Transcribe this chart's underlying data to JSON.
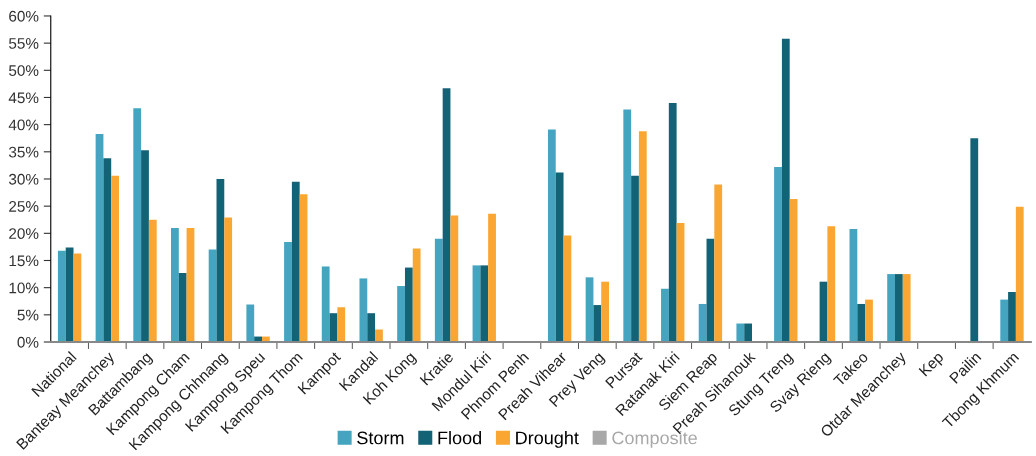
{
  "chart_data": {
    "type": "bar",
    "categories": [
      "National",
      "Banteay Meanchey",
      "Battambang",
      "Kampong Cham",
      "Kampong Chhnang",
      "Kampong Speu",
      "Kampong Thom",
      "Kampot",
      "Kandal",
      "Koh Kong",
      "Kratie",
      "Mondul Kiri",
      "Phnom Penh",
      "Preah Vihear",
      "Prey Veng",
      "Pursat",
      "Ratanak Kiri",
      "Siem Reap",
      "Preah Sihanouk",
      "Stung Treng",
      "Svay Rieng",
      "Takeo",
      "Otdar Meanchey",
      "Kep",
      "Pailin",
      "Tbong Khmum"
    ],
    "series": [
      {
        "name": "Storm",
        "color": "#45a5c0",
        "values": [
          16.8,
          38.3,
          43.0,
          21.0,
          17.0,
          6.9,
          18.4,
          13.9,
          11.7,
          10.3,
          19.0,
          14.1,
          null,
          39.1,
          11.9,
          42.8,
          9.8,
          7.0,
          3.4,
          32.2,
          null,
          20.8,
          12.5,
          null,
          null,
          7.8
        ]
      },
      {
        "name": "Flood",
        "color": "#136377",
        "values": [
          17.4,
          33.8,
          35.3,
          12.7,
          30.0,
          1.0,
          29.5,
          5.3,
          5.3,
          13.7,
          46.7,
          14.1,
          null,
          31.2,
          6.8,
          30.6,
          44.0,
          19.0,
          3.4,
          55.8,
          11.1,
          7.0,
          12.5,
          null,
          37.5,
          9.2
        ]
      },
      {
        "name": "Drought",
        "color": "#f9a633",
        "values": [
          16.3,
          30.6,
          22.5,
          21.0,
          22.9,
          1.0,
          27.2,
          6.4,
          2.3,
          17.2,
          23.3,
          23.6,
          null,
          19.6,
          11.1,
          38.8,
          21.9,
          29.0,
          null,
          26.3,
          21.3,
          7.8,
          12.5,
          null,
          null,
          24.9
        ]
      },
      {
        "name": "Composite",
        "color": "#a8a8a8",
        "values": [
          null,
          null,
          null,
          null,
          null,
          null,
          null,
          null,
          null,
          null,
          null,
          null,
          null,
          null,
          null,
          null,
          null,
          null,
          null,
          null,
          null,
          null,
          null,
          null,
          null,
          null
        ]
      }
    ],
    "ylim": [
      0,
      60
    ],
    "yticks": [
      {
        "value": 0,
        "label": "0%"
      },
      {
        "value": 5,
        "label": "5%"
      },
      {
        "value": 10,
        "label": "10%"
      },
      {
        "value": 15,
        "label": "15%"
      },
      {
        "value": 20,
        "label": "20%"
      },
      {
        "value": 25,
        "label": "25%"
      },
      {
        "value": 30,
        "label": "30%"
      },
      {
        "value": 35,
        "label": "35%"
      },
      {
        "value": 40,
        "label": "40%"
      },
      {
        "value": 45,
        "label": "45%"
      },
      {
        "value": 50,
        "label": "50%"
      },
      {
        "value": 55,
        "label": "55%"
      },
      {
        "value": 60,
        "label": "60%"
      }
    ],
    "grid": false,
    "legend": "bottom"
  }
}
